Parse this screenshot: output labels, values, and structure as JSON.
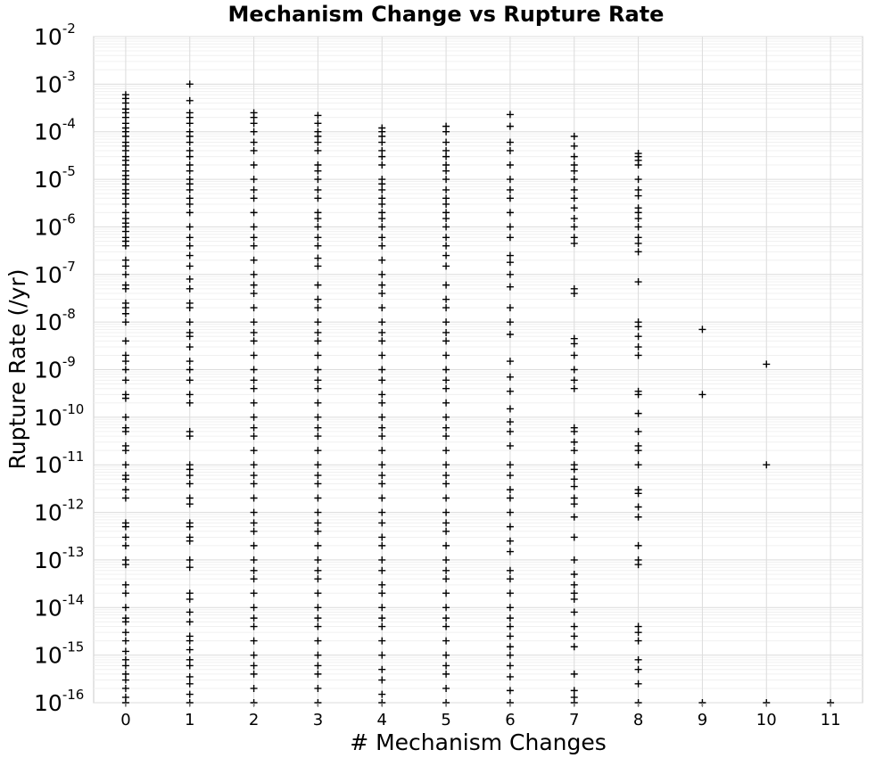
{
  "chart_data": {
    "type": "scatter",
    "title": "Mechanism Change vs Rupture Rate",
    "xlabel": "# Mechanism Changes",
    "ylabel": "Rupture Rate (/yr)",
    "y_scale": "log",
    "xlim": [
      -0.5,
      11.5
    ],
    "ylim": [
      1e-16,
      0.01
    ],
    "x_ticks": [
      0,
      1,
      2,
      3,
      4,
      5,
      6,
      7,
      8,
      9,
      10,
      11
    ],
    "x_tick_labels": [
      "0",
      "1",
      "2",
      "3",
      "4",
      "5",
      "6",
      "7",
      "8",
      "9",
      "10",
      "11"
    ],
    "y_tick_labels": [
      {
        "base": "10",
        "exp": "-16"
      },
      {
        "base": "10",
        "exp": "-15"
      },
      {
        "base": "10",
        "exp": "-14"
      },
      {
        "base": "10",
        "exp": "-13"
      },
      {
        "base": "10",
        "exp": "-12"
      },
      {
        "base": "10",
        "exp": "-11"
      },
      {
        "base": "10",
        "exp": "-10"
      },
      {
        "base": "10",
        "exp": "-9"
      },
      {
        "base": "10",
        "exp": "-8"
      },
      {
        "base": "10",
        "exp": "-7"
      },
      {
        "base": "10",
        "exp": "-6"
      },
      {
        "base": "10",
        "exp": "-5"
      },
      {
        "base": "10",
        "exp": "-4"
      },
      {
        "base": "10",
        "exp": "-3"
      },
      {
        "base": "10",
        "exp": "-2"
      }
    ],
    "grid": true,
    "marker": "+",
    "marker_color": "#000000",
    "series": [
      {
        "x": 0,
        "y": [
          0.0006,
          0.0005,
          0.0004,
          0.0003,
          0.00025,
          0.0002,
          0.00015,
          0.00012,
          0.0001,
          8e-05,
          6e-05,
          5e-05,
          4e-05,
          3e-05,
          2.5e-05,
          2e-05,
          1.5e-05,
          1.2e-05,
          1e-05,
          8e-06,
          6e-06,
          5e-06,
          4e-06,
          3e-06,
          2e-06,
          1.5e-06,
          1.2e-06,
          1e-06,
          8e-07,
          6e-07,
          5e-07,
          4e-07,
          2e-07,
          1.5e-07,
          1e-07,
          6e-08,
          5e-08,
          2.5e-08,
          2e-08,
          1.5e-08,
          1e-08,
          4e-09,
          2e-09,
          1.5e-09,
          1e-09,
          6e-10,
          3e-10,
          2.5e-10,
          1e-10,
          6e-11,
          5e-11,
          2.5e-11,
          2e-11,
          1e-11,
          6e-12,
          5e-12,
          3e-12,
          2e-12,
          6e-13,
          5e-13,
          3e-13,
          2e-13,
          1e-13,
          8e-14,
          3e-14,
          2e-14,
          1e-14,
          6e-15,
          5e-15,
          3e-15,
          2e-15,
          1.2e-15,
          8e-16,
          6e-16,
          4e-16,
          3e-16,
          2e-16,
          1.3e-16,
          1e-16
        ]
      },
      {
        "x": 1,
        "y": [
          0.001,
          0.00045,
          0.00025,
          0.0002,
          0.00015,
          0.0001,
          8e-05,
          6e-05,
          4e-05,
          3e-05,
          2e-05,
          1.5e-05,
          1e-05,
          8e-06,
          6e-06,
          4e-06,
          3e-06,
          2e-06,
          1e-06,
          6e-07,
          4e-07,
          2.5e-07,
          1.5e-07,
          8e-08,
          5e-08,
          2.5e-08,
          2e-08,
          1e-08,
          6e-09,
          5e-09,
          3e-09,
          1.5e-09,
          1e-09,
          6e-10,
          3e-10,
          2e-10,
          5e-11,
          4e-11,
          1e-11,
          8e-12,
          6e-12,
          4e-12,
          2e-12,
          1.5e-12,
          6e-13,
          5e-13,
          3e-13,
          2.5e-13,
          1e-13,
          7e-14,
          2e-14,
          1.5e-14,
          8e-15,
          5e-15,
          2.5e-15,
          2e-15,
          1.3e-15,
          8e-16,
          6e-16,
          3.5e-16,
          2.5e-16,
          1.5e-16,
          1e-16
        ]
      },
      {
        "x": 2,
        "y": [
          0.00025,
          0.0002,
          0.00015,
          0.0001,
          6e-05,
          4e-05,
          2e-05,
          1e-05,
          6e-06,
          4e-06,
          2e-06,
          1e-06,
          6e-07,
          4e-07,
          2e-07,
          1e-07,
          6e-08,
          4e-08,
          2e-08,
          1e-08,
          6e-09,
          4e-09,
          2e-09,
          1e-09,
          6e-10,
          4e-10,
          2e-10,
          1e-10,
          6e-11,
          4e-11,
          2e-11,
          1e-11,
          6e-12,
          4e-12,
          2e-12,
          1e-12,
          6e-13,
          4e-13,
          2e-13,
          1e-13,
          6e-14,
          4e-14,
          2e-14,
          1e-14,
          6e-15,
          4e-15,
          2e-15,
          1e-15,
          6e-16,
          4e-16,
          2e-16,
          1e-16
        ]
      },
      {
        "x": 3,
        "y": [
          0.00022,
          0.00015,
          0.0001,
          8e-05,
          6e-05,
          4e-05,
          2e-05,
          1.5e-05,
          1e-05,
          6e-06,
          4e-06,
          2e-06,
          1.5e-06,
          1e-06,
          6e-07,
          4e-07,
          2.2e-07,
          1.5e-07,
          6e-08,
          3e-08,
          2e-08,
          1e-08,
          6e-09,
          4e-09,
          2e-09,
          1e-09,
          6e-10,
          4e-10,
          2e-10,
          1e-10,
          6e-11,
          4e-11,
          2e-11,
          1e-11,
          6e-12,
          4e-12,
          2e-12,
          1e-12,
          6e-13,
          4e-13,
          2e-13,
          1e-13,
          6e-14,
          4e-14,
          2e-14,
          1e-14,
          6e-15,
          4e-15,
          2e-15,
          1e-15,
          6e-16,
          4e-16,
          2e-16,
          1e-16
        ]
      },
      {
        "x": 4,
        "y": [
          0.00012,
          0.0001,
          8e-05,
          6e-05,
          4e-05,
          3e-05,
          2e-05,
          1e-05,
          8e-06,
          6e-06,
          4e-06,
          3e-06,
          2e-06,
          1.5e-06,
          1e-06,
          6e-07,
          4e-07,
          2e-07,
          1e-07,
          6e-08,
          4e-08,
          2e-08,
          1e-08,
          6e-09,
          4e-09,
          2e-09,
          1e-09,
          6e-10,
          3e-10,
          2e-10,
          1e-10,
          6e-11,
          4e-11,
          2e-11,
          1e-11,
          6e-12,
          4e-12,
          2e-12,
          1e-12,
          6e-13,
          3e-13,
          2e-13,
          1e-13,
          6e-14,
          3e-14,
          2e-14,
          1e-14,
          6e-15,
          4e-15,
          2e-15,
          1e-15,
          5e-16,
          3e-16,
          1.5e-16,
          1e-16
        ]
      },
      {
        "x": 5,
        "y": [
          0.00013,
          0.0001,
          6e-05,
          4e-05,
          3e-05,
          2e-05,
          1.5e-05,
          1e-05,
          6e-06,
          4e-06,
          3e-06,
          2e-06,
          1.5e-06,
          1e-06,
          6e-07,
          4e-07,
          2.5e-07,
          1.5e-07,
          6e-08,
          3e-08,
          2e-08,
          1e-08,
          6e-09,
          4e-09,
          2e-09,
          1e-09,
          6e-10,
          4e-10,
          2e-10,
          1e-10,
          6e-11,
          4e-11,
          2e-11,
          1e-11,
          6e-12,
          4e-12,
          2e-12,
          1e-12,
          6e-13,
          4e-13,
          2e-13,
          1e-13,
          6e-14,
          4e-14,
          2e-14,
          1e-14,
          6e-15,
          4e-15,
          2e-15,
          1e-15,
          6e-16,
          4e-16,
          2e-16,
          1e-16
        ]
      },
      {
        "x": 6,
        "y": [
          0.00023,
          0.00013,
          6e-05,
          4e-05,
          2e-05,
          1e-05,
          6e-06,
          4e-06,
          2e-06,
          1e-06,
          6e-07,
          2.5e-07,
          1.8e-07,
          1e-07,
          5.5e-08,
          2e-08,
          1e-08,
          5.5e-09,
          1.5e-09,
          7e-10,
          3.5e-10,
          1.5e-10,
          8e-11,
          5e-11,
          2.5e-11,
          1e-11,
          6e-12,
          3e-12,
          2e-12,
          1e-12,
          5e-13,
          2.5e-13,
          1.5e-13,
          6e-14,
          4e-14,
          2e-14,
          1e-14,
          6e-15,
          4e-15,
          2.5e-15,
          1.5e-15,
          1e-15,
          6e-16,
          3.5e-16,
          1.8e-16,
          1e-16
        ]
      },
      {
        "x": 7,
        "y": [
          8e-05,
          5e-05,
          3e-05,
          2e-05,
          1.5e-05,
          1e-05,
          6e-06,
          4e-06,
          2.5e-06,
          1.5e-06,
          1e-06,
          6e-07,
          4.5e-07,
          5e-08,
          4e-08,
          4.5e-09,
          3.5e-09,
          2e-09,
          1e-09,
          6e-10,
          4e-10,
          6e-11,
          5e-11,
          3e-11,
          2e-11,
          1e-11,
          8e-12,
          5e-12,
          3.5e-12,
          2e-12,
          1.5e-12,
          8e-13,
          3e-13,
          1e-13,
          5e-14,
          3e-14,
          2e-14,
          1.5e-14,
          8e-15,
          4e-15,
          2.5e-15,
          1.5e-15,
          4e-16,
          1.8e-16,
          1.3e-16,
          1e-16
        ]
      },
      {
        "x": 8,
        "y": [
          3.5e-05,
          3e-05,
          2.5e-05,
          2e-05,
          1e-05,
          6e-06,
          4.5e-06,
          2.5e-06,
          2e-06,
          1.5e-06,
          1e-06,
          6e-07,
          4.5e-07,
          3e-07,
          7e-08,
          1e-08,
          8e-09,
          5e-09,
          3e-09,
          2e-09,
          3.5e-10,
          3e-10,
          1.2e-10,
          5e-11,
          2.5e-11,
          2e-11,
          1e-11,
          3e-12,
          2.5e-12,
          1.3e-12,
          8e-13,
          2e-13,
          1e-13,
          8e-14,
          4e-15,
          3e-15,
          2e-15,
          8e-16,
          5e-16,
          2.5e-16,
          1e-16
        ]
      },
      {
        "x": 9,
        "y": [
          7e-09,
          3e-10,
          1e-16
        ]
      },
      {
        "x": 10,
        "y": [
          1.3e-09,
          1e-11,
          1e-16
        ]
      },
      {
        "x": 11,
        "y": [
          1e-16
        ]
      }
    ]
  }
}
